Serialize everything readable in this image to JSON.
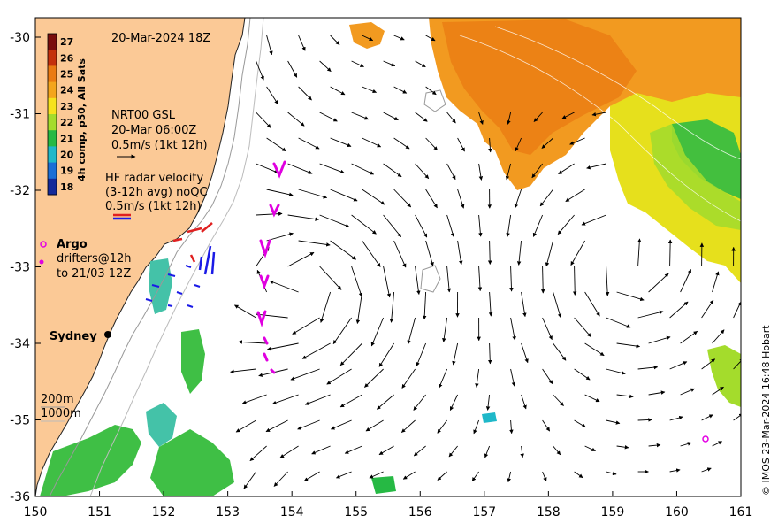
{
  "map": {
    "date_title": "20-Mar-2024 18Z",
    "colorbar": {
      "label": "4h comp, p50, All Sats",
      "ticks": [
        "27",
        "26",
        "25",
        "24",
        "23",
        "22",
        "21",
        "20",
        "19",
        "18"
      ],
      "colors": [
        "#7a0d0d",
        "#c4310c",
        "#ea7a12",
        "#f4a51c",
        "#f6e21d",
        "#a4dc2c",
        "#26b944",
        "#1fb8c9",
        "#1b6ed6",
        "#142a9a"
      ]
    },
    "current_legend": {
      "line1": "NRT00 GSL",
      "line2": "20-Mar 06:00Z",
      "line3": "0.5m/s (1kt 12h)"
    },
    "hf_legend": {
      "line1": "HF radar velocity",
      "line2": "(3-12h avg) noQC",
      "line3": "0.5m/s (1kt 12h)"
    },
    "argo_label": "Argo",
    "drifter_line1": "drifters@12h",
    "drifter_line2": "to 21/03 12Z",
    "city_label": "Sydney",
    "depth_label_1": "200m",
    "depth_label_2": "1000m",
    "credit": "© IMOS 23-Mar-2024 16:48 Hobart",
    "x_ticks": [
      "150",
      "151",
      "152",
      "153",
      "154",
      "155",
      "156",
      "157",
      "158",
      "159",
      "160",
      "161"
    ],
    "y_ticks": [
      "-30",
      "-31",
      "-32",
      "-33",
      "-34",
      "-35",
      "-36"
    ],
    "colors": {
      "land": "#fbc996",
      "argo": "#e400e4",
      "hf_red": "#e02020",
      "hf_blue": "#1a1ae6",
      "drifter": "#e000e0"
    }
  }
}
